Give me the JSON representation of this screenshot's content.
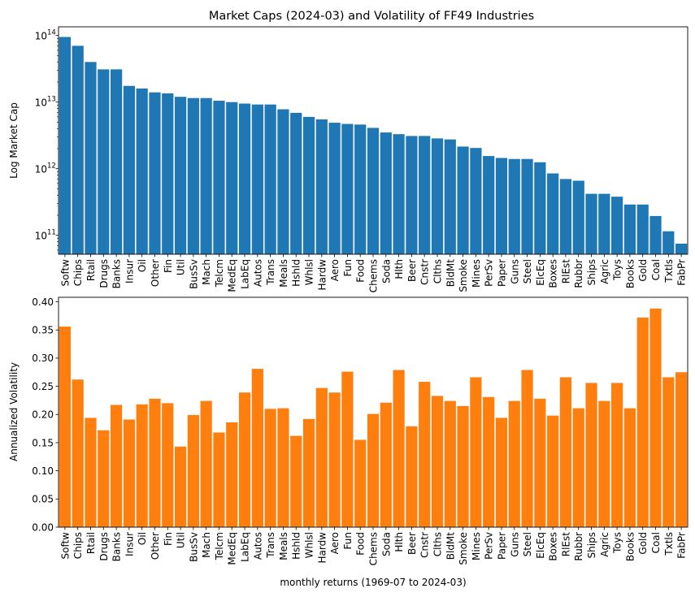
{
  "chart_data": [
    {
      "type": "bar",
      "title": "Market Caps (2024-03) and Volatility of FF49 Industries",
      "xlabel": "",
      "ylabel": "Log Market Cap",
      "yscale": "log",
      "ylim": [
        52000000000.0,
        135000000000000.0
      ],
      "yticks": [
        {
          "value": 100000000000.0,
          "base": "10",
          "exp": "11"
        },
        {
          "value": 1000000000000.0,
          "base": "10",
          "exp": "12"
        },
        {
          "value": 10000000000000.0,
          "base": "10",
          "exp": "13"
        },
        {
          "value": 100000000000000.0,
          "base": "10",
          "exp": "14"
        }
      ],
      "color": "#1f77b4",
      "categories": [
        "Softw",
        "Chips",
        "Rtail",
        "Drugs",
        "Banks",
        "Insur",
        "Oil",
        "Other",
        "Fin",
        "Util",
        "BusSv",
        "Mach",
        "Telcm",
        "MedEq",
        "LabEq",
        "Autos",
        "Trans",
        "Meals",
        "Hshld",
        "Whlsl",
        "Hardw",
        "Aero",
        "Fun",
        "Food",
        "Chems",
        "Soda",
        "Hlth",
        "Beer",
        "Cnstr",
        "Clths",
        "BldMt",
        "Smoke",
        "Mines",
        "PerSv",
        "Paper",
        "Guns",
        "Steel",
        "ElcEq",
        "Boxes",
        "RlEst",
        "Rubbr",
        "Ships",
        "Agric",
        "Toys",
        "Books",
        "Gold",
        "Coal",
        "Txtls",
        "FabPr"
      ],
      "values": [
        95000000000000.0,
        70000000000000.0,
        40000000000000.0,
        31000000000000.0,
        31000000000000.0,
        17500000000000.0,
        16000000000000.0,
        14000000000000.0,
        13500000000000.0,
        12000000000000.0,
        11500000000000.0,
        11500000000000.0,
        10500000000000.0,
        10000000000000.0,
        9500000000000.0,
        9200000000000.0,
        9200000000000.0,
        7800000000000.0,
        6900000000000.0,
        6000000000000.0,
        5500000000000.0,
        4900000000000.0,
        4700000000000.0,
        4600000000000.0,
        4100000000000.0,
        3500000000000.0,
        3300000000000.0,
        3100000000000.0,
        3100000000000.0,
        2850000000000.0,
        2750000000000.0,
        2150000000000.0,
        2050000000000.0,
        1550000000000.0,
        1450000000000.0,
        1400000000000.0,
        1400000000000.0,
        1250000000000.0,
        850000000000.0,
        700000000000.0,
        660000000000.0,
        420000000000.0,
        420000000000.0,
        380000000000.0,
        290000000000.0,
        290000000000.0,
        195000000000.0,
        115000000000.0,
        75000000000.0
      ]
    },
    {
      "type": "bar",
      "title": "",
      "xlabel": "monthly returns (1969-07 to 2024-03)",
      "ylabel": "Annualized Volatility",
      "ylim": [
        0,
        0.408
      ],
      "yticks": [
        "0.00",
        "0.05",
        "0.10",
        "0.15",
        "0.20",
        "0.25",
        "0.30",
        "0.35",
        "0.40"
      ],
      "color": "#ff7f0e",
      "categories": [
        "Softw",
        "Chips",
        "Rtail",
        "Drugs",
        "Banks",
        "Insur",
        "Oil",
        "Other",
        "Fin",
        "Util",
        "BusSv",
        "Mach",
        "Telcm",
        "MedEq",
        "LabEq",
        "Autos",
        "Trans",
        "Meals",
        "Hshld",
        "Whlsl",
        "Hardw",
        "Aero",
        "Fun",
        "Food",
        "Chems",
        "Soda",
        "Hlth",
        "Beer",
        "Cnstr",
        "Clths",
        "BldMt",
        "Smoke",
        "Mines",
        "PerSv",
        "Paper",
        "Guns",
        "Steel",
        "ElcEq",
        "Boxes",
        "RlEst",
        "Rubbr",
        "Ships",
        "Agric",
        "Toys",
        "Books",
        "Gold",
        "Coal",
        "Txtls",
        "FabPr"
      ],
      "values": [
        0.356,
        0.262,
        0.194,
        0.172,
        0.217,
        0.191,
        0.218,
        0.228,
        0.22,
        0.143,
        0.199,
        0.224,
        0.168,
        0.186,
        0.239,
        0.281,
        0.21,
        0.211,
        0.162,
        0.192,
        0.247,
        0.239,
        0.276,
        0.155,
        0.201,
        0.221,
        0.279,
        0.179,
        0.258,
        0.233,
        0.224,
        0.215,
        0.266,
        0.231,
        0.194,
        0.224,
        0.279,
        0.228,
        0.198,
        0.266,
        0.211,
        0.256,
        0.224,
        0.256,
        0.211,
        0.372,
        0.388,
        0.266,
        0.275
      ]
    }
  ]
}
